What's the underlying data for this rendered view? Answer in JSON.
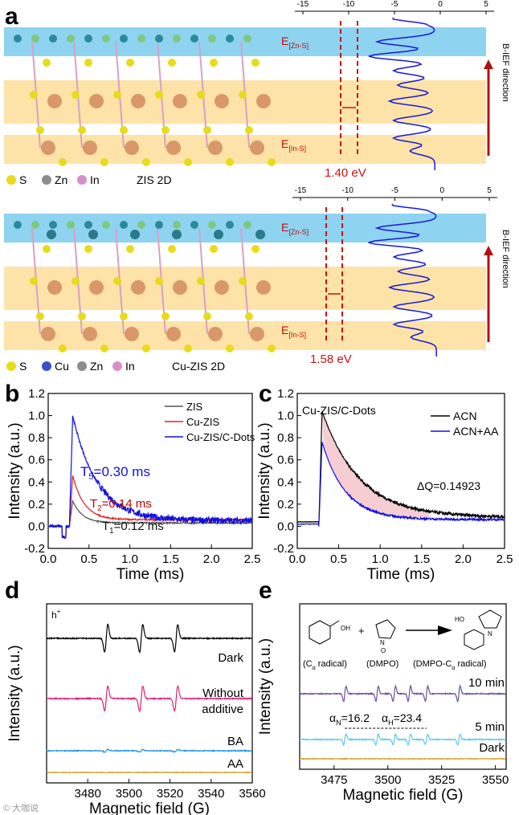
{
  "panel_a": {
    "label": "a",
    "top": {
      "axis_ticks": [
        "-15",
        "-10",
        "-5",
        "0",
        "5"
      ],
      "e_zn_s": "E",
      "e_zn_s_sub": "[Zn-S]",
      "e_in_s": "E",
      "e_in_s_sub": "[In-S]",
      "gap": "1.40 eV",
      "field_label": "B-IEF direction",
      "legend": [
        "S",
        "Zn",
        "In"
      ],
      "title": "ZIS 2D"
    },
    "bottom": {
      "axis_ticks": [
        "-15",
        "-10",
        "-5",
        "0",
        "5"
      ],
      "e_zn_s": "E",
      "e_zn_s_sub": "[Zn-S]",
      "e_in_s": "E",
      "e_in_s_sub": "[In-S]",
      "gap": "1.58 eV",
      "field_label": "B-IEF direction",
      "legend": [
        "S",
        "Cu",
        "Zn",
        "In"
      ],
      "title": "Cu-ZIS 2D"
    },
    "colors": {
      "blue_band": "#8ed3f0",
      "orange_band": "#fde3a7",
      "S": "#e8dc1a",
      "Zn": "#8c8c8c",
      "In": "#d88fc8",
      "Cu": "#3a50c8",
      "dos": "#1a1adb",
      "arrow": "#b01010"
    }
  },
  "chart_data": [
    {
      "panel": "b",
      "type": "line",
      "xlabel": "Time (ms)",
      "ylabel": "Intensity (a.u.)",
      "xlim": [
        0,
        2.5
      ],
      "ylim": [
        -0.2,
        1.2
      ],
      "xticks": [
        "0.0",
        "0.5",
        "1.0",
        "1.5",
        "2.0",
        "2.5"
      ],
      "yticks": [
        "-0.2",
        "0.0",
        "0.2",
        "0.4",
        "0.6",
        "0.8",
        "1.0",
        "1.2"
      ],
      "legend_position": "top-right",
      "series": [
        {
          "name": "ZIS",
          "color": "#555555",
          "peak": 0.23,
          "tau": 0.12,
          "baseline": 0.03,
          "noise": 0.01
        },
        {
          "name": "Cu-ZIS",
          "color": "#e02020",
          "peak": 0.46,
          "tau": 0.14,
          "baseline": 0.06,
          "noise": 0.01
        },
        {
          "name": "Cu-ZIS/C-Dots",
          "color": "#1010e0",
          "peak": 1.0,
          "tau": 0.3,
          "baseline": 0.05,
          "noise": 0.05
        }
      ],
      "annotations": [
        {
          "text": "T",
          "sub": "5",
          "rest": "=0.30 ms",
          "color": "#1010e0"
        },
        {
          "text": "T",
          "sub": "2",
          "rest": "=0.14 ms",
          "color": "#c00000"
        },
        {
          "text": "T",
          "sub": "1",
          "rest": "=0.12 ms",
          "color": "#111111"
        }
      ]
    },
    {
      "panel": "c",
      "type": "line",
      "title": "Cu-ZIS/C-Dots",
      "xlabel": "Time (ms)",
      "ylabel": "Intensity (a.u.)",
      "xlim": [
        0,
        2.5
      ],
      "ylim": [
        -0.2,
        1.2
      ],
      "xticks": [
        "0.0",
        "0.5",
        "1.0",
        "1.5",
        "2.0",
        "2.5"
      ],
      "yticks": [
        "-0.2",
        "0.0",
        "0.2",
        "0.4",
        "0.6",
        "0.8",
        "1.0",
        "1.2"
      ],
      "legend_position": "top-right",
      "series": [
        {
          "name": "ACN",
          "color": "#000000",
          "peak": 1.04,
          "tau": 0.45,
          "baseline": 0.08,
          "noise": 0.025
        },
        {
          "name": "ACN+AA",
          "color": "#1010e0",
          "peak": 0.76,
          "tau": 0.28,
          "baseline": 0.06,
          "noise": 0.015
        }
      ],
      "annotation": "ΔQ=0.14923"
    },
    {
      "panel": "d",
      "type": "line",
      "corner_label": "h",
      "corner_sup": "+",
      "xlabel": "Magnetic field (G)",
      "ylabel": "Intensity (a.u.)",
      "xlim": [
        3460,
        3560
      ],
      "xticks": [
        "3480",
        "3500",
        "3520",
        "3540",
        "3560"
      ],
      "line_centers": [
        3489,
        3506,
        3523
      ],
      "series": [
        {
          "name": "Dark",
          "color": "#000000",
          "amplitude": 1.0
        },
        {
          "name": "Without additive",
          "label_lines": [
            "Without",
            "additive"
          ],
          "color": "#e0207a",
          "amplitude": 0.9
        },
        {
          "name": "BA",
          "color": "#2a9ae0",
          "amplitude": 0.12
        },
        {
          "name": "AA",
          "color": "#d4a020",
          "amplitude": 0.0
        }
      ]
    },
    {
      "panel": "e",
      "type": "line",
      "xlabel": "Magnetic field (G)",
      "ylabel": "Intensity (a.u.)",
      "xlim": [
        3459,
        3555
      ],
      "xticks": [
        "3475",
        "3500",
        "3525",
        "3550"
      ],
      "line_centers": [
        3480,
        3495,
        3503,
        3510,
        3518,
        3533
      ],
      "series": [
        {
          "name": "10 min",
          "color": "#6a4ea0",
          "amplitude": 1.0
        },
        {
          "name": "5 min",
          "color": "#5ac8ee",
          "amplitude": 0.7
        },
        {
          "name": "Dark",
          "color": "#d4a020",
          "amplitude": 0.0
        }
      ],
      "hyperfine": {
        "aN_label": "α",
        "aN_sub": "N",
        "aN_value": "=16.2",
        "aH_label": "α",
        "aH_sub": "H",
        "aH_value": "=23.4"
      },
      "scheme": {
        "reactant1": "(C",
        "reactant1_sub": "α",
        "reactant1_end": " radical)",
        "reactant2": "(DMPO)",
        "product": "(DMPO-C",
        "product_sub": "α",
        "product_end": " radical)",
        "plus": "+",
        "oh": "OH",
        "ho": "HO",
        "n": "N",
        "o": "O"
      }
    }
  ],
  "panel_labels": {
    "b": "b",
    "c": "c",
    "d": "d",
    "e": "e"
  },
  "watermark": "© 大咖说"
}
